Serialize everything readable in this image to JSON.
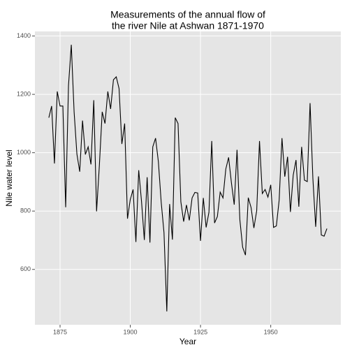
{
  "chart_data": {
    "type": "line",
    "title": [
      "Measurements of the annual flow of",
      "the river Nile at Ashwan 1871-1970"
    ],
    "xlabel": "Year",
    "ylabel": "Nile water level",
    "x": [
      1871,
      1872,
      1873,
      1874,
      1875,
      1876,
      1877,
      1878,
      1879,
      1880,
      1881,
      1882,
      1883,
      1884,
      1885,
      1886,
      1887,
      1888,
      1889,
      1890,
      1891,
      1892,
      1893,
      1894,
      1895,
      1896,
      1897,
      1898,
      1899,
      1900,
      1901,
      1902,
      1903,
      1904,
      1905,
      1906,
      1907,
      1908,
      1909,
      1910,
      1911,
      1912,
      1913,
      1914,
      1915,
      1916,
      1917,
      1918,
      1919,
      1920,
      1921,
      1922,
      1923,
      1924,
      1925,
      1926,
      1927,
      1928,
      1929,
      1930,
      1931,
      1932,
      1933,
      1934,
      1935,
      1936,
      1937,
      1938,
      1939,
      1940,
      1941,
      1942,
      1943,
      1944,
      1945,
      1946,
      1947,
      1948,
      1949,
      1950,
      1951,
      1952,
      1953,
      1954,
      1955,
      1956,
      1957,
      1958,
      1959,
      1960,
      1961,
      1962,
      1963,
      1964,
      1965,
      1966,
      1967,
      1968,
      1969,
      1970
    ],
    "series": [
      {
        "name": "Nile",
        "color": "#000000",
        "values": [
          1120,
          1160,
          963,
          1210,
          1160,
          1160,
          813,
          1230,
          1370,
          1140,
          995,
          935,
          1110,
          994,
          1020,
          960,
          1180,
          799,
          958,
          1140,
          1100,
          1210,
          1150,
          1250,
          1260,
          1220,
          1030,
          1100,
          774,
          840,
          874,
          694,
          940,
          833,
          701,
          916,
          692,
          1020,
          1050,
          969,
          831,
          726,
          456,
          824,
          702,
          1120,
          1100,
          832,
          764,
          821,
          768,
          845,
          864,
          862,
          698,
          845,
          744,
          796,
          1040,
          759,
          781,
          865,
          845,
          944,
          984,
          897,
          822,
          1010,
          771,
          676,
          649,
          846,
          812,
          742,
          801,
          1040,
          860,
          874,
          848,
          890,
          744,
          749,
          838,
          1050,
          918,
          986,
          797,
          923,
          975,
          815,
          1020,
          906,
          901,
          1170,
          912,
          746,
          919,
          718,
          714,
          740
        ]
      }
    ],
    "xlim": [
      1866.05,
      1974.95
    ],
    "xticks": [
      1875,
      1900,
      1925,
      1950
    ],
    "ylim": [
      410.3,
      1415.7
    ],
    "yticks": [
      600,
      800,
      1000,
      1200,
      1400
    ],
    "grid": true
  }
}
